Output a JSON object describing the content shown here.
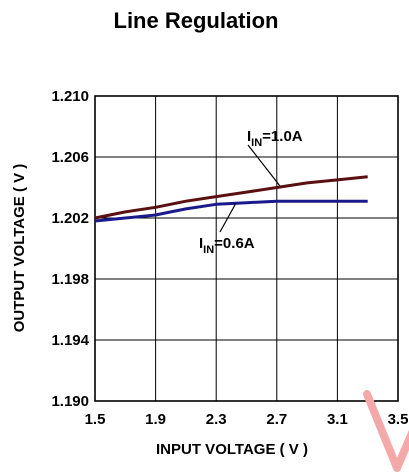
{
  "chart_data": {
    "type": "line",
    "title": "Line Regulation",
    "xlabel": "INPUT VOLTAGE ( V )",
    "ylabel": "OUTPUT VOLTAGE ( V )",
    "xlim": [
      1.5,
      3.5
    ],
    "ylim": [
      1.19,
      1.21
    ],
    "x_ticks": [
      "1.5",
      "1.9",
      "2.3",
      "2.7",
      "3.1",
      "3.5"
    ],
    "y_ticks": [
      "1.210",
      "1.206",
      "1.202",
      "1.198",
      "1.194",
      "1.190"
    ],
    "grid": true,
    "series": [
      {
        "label_main": "I",
        "label_sub": "IN",
        "label_rest": "=1.0A",
        "color": "#5a1010",
        "x": [
          1.5,
          1.7,
          1.9,
          2.1,
          2.3,
          2.5,
          2.7,
          2.9,
          3.1,
          3.3
        ],
        "y": [
          1.202,
          1.2024,
          1.2027,
          1.2031,
          1.2034,
          1.2037,
          1.204,
          1.2043,
          1.2045,
          1.2047
        ]
      },
      {
        "label_main": "I",
        "label_sub": "IN",
        "label_rest": "=0.6A",
        "color": "#1a1a8c",
        "x": [
          1.5,
          1.6,
          1.7,
          1.9,
          2.0,
          2.1,
          2.3,
          2.5,
          2.7,
          2.9,
          3.1,
          3.3
        ],
        "y": [
          1.2018,
          1.2019,
          1.202,
          1.2022,
          1.2024,
          1.2026,
          1.2029,
          1.203,
          1.2031,
          1.2031,
          1.2031,
          1.2031
        ]
      }
    ]
  }
}
